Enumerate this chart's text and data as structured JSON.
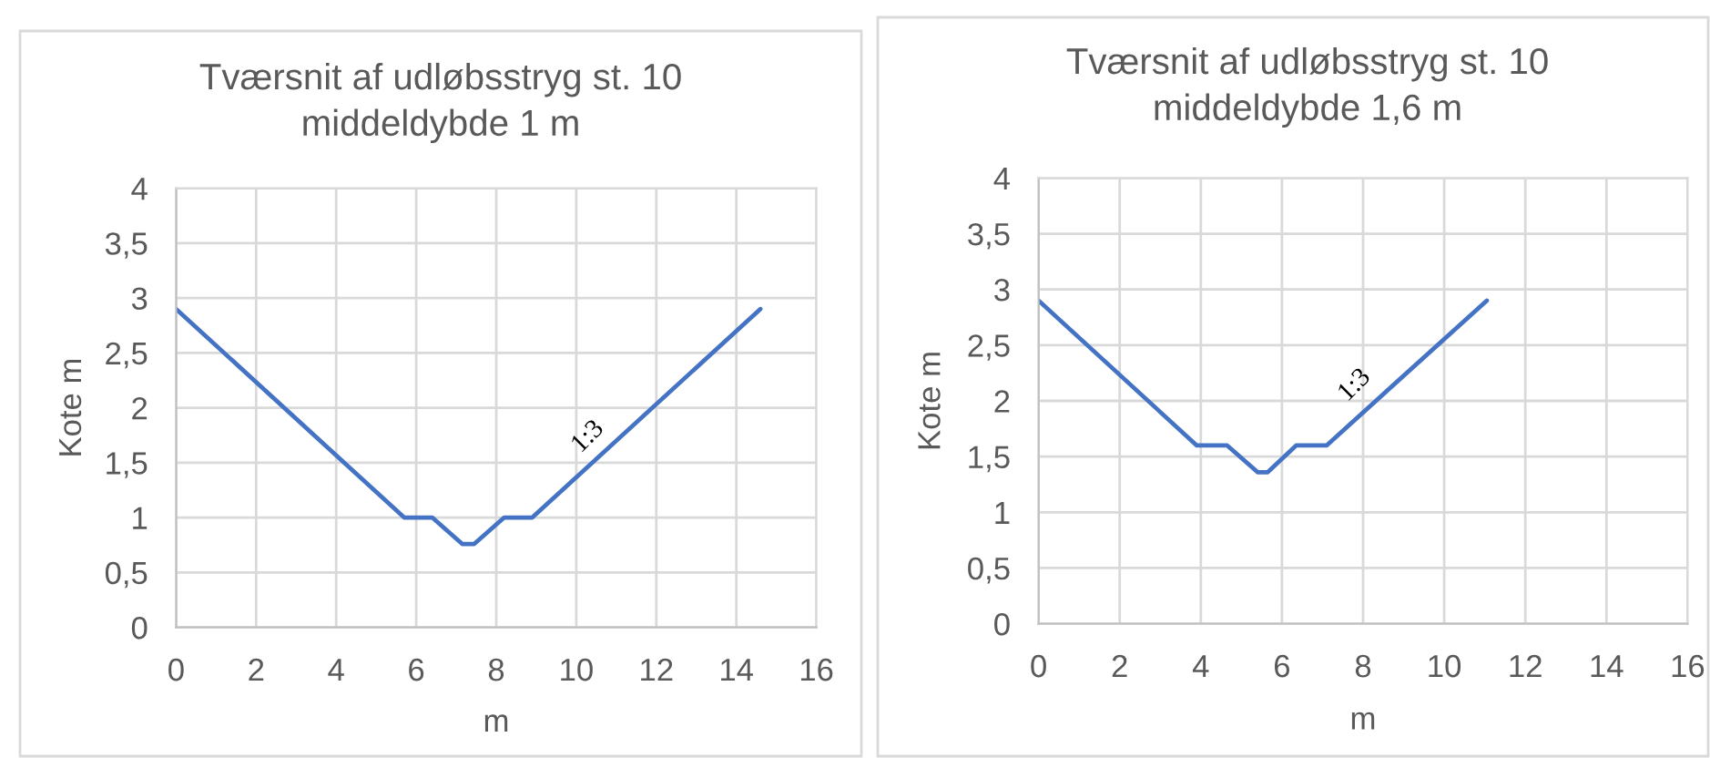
{
  "chart_data": [
    {
      "type": "line",
      "title": "Tværsnit af udløbsstryg st. 10\nmiddeldybde 1 m",
      "xlabel": "m",
      "ylabel": "Kote m",
      "x": [
        0,
        5.7,
        6.4,
        7.15,
        7.45,
        8.2,
        8.9,
        14.6
      ],
      "values": [
        2.9,
        1,
        1,
        0.76,
        0.76,
        1,
        1,
        2.9
      ],
      "color": "#4472c4",
      "xlim": [
        0,
        16
      ],
      "xticks": [
        0,
        2,
        4,
        6,
        8,
        10,
        12,
        14,
        16
      ],
      "ylim": [
        0,
        4
      ],
      "yticks": [
        0,
        {
          "value": 0.5,
          "label": "0,5"
        },
        1,
        {
          "value": 1.5,
          "label": "1,5"
        },
        2,
        {
          "value": 2.5,
          "label": "2,5"
        },
        3,
        {
          "value": 3.5,
          "label": "3,5"
        },
        4
      ],
      "grid": true,
      "annotations": [
        "1:3"
      ]
    },
    {
      "type": "line",
      "title": "Tværsnit af udløbsstryg st. 10\nmiddeldybde 1,6 m",
      "xlabel": "m",
      "ylabel": "Kote m",
      "x": [
        0,
        3.9,
        4.65,
        5.4,
        5.65,
        6.35,
        7.1,
        11.05
      ],
      "values": [
        2.9,
        1.6,
        1.6,
        1.36,
        1.36,
        1.6,
        1.6,
        2.9
      ],
      "color": "#4472c4",
      "xlim": [
        0,
        16
      ],
      "xticks": [
        0,
        2,
        4,
        6,
        8,
        10,
        12,
        14,
        16
      ],
      "ylim": [
        0,
        4
      ],
      "yticks": [
        0,
        {
          "value": 0.5,
          "label": "0,5"
        },
        1,
        {
          "value": 1.5,
          "label": "1,5"
        },
        2,
        {
          "value": 2.5,
          "label": "2,5"
        },
        3,
        {
          "value": 3.5,
          "label": "3,5"
        },
        4
      ],
      "grid": true,
      "annotations": [
        "1:3"
      ]
    }
  ]
}
